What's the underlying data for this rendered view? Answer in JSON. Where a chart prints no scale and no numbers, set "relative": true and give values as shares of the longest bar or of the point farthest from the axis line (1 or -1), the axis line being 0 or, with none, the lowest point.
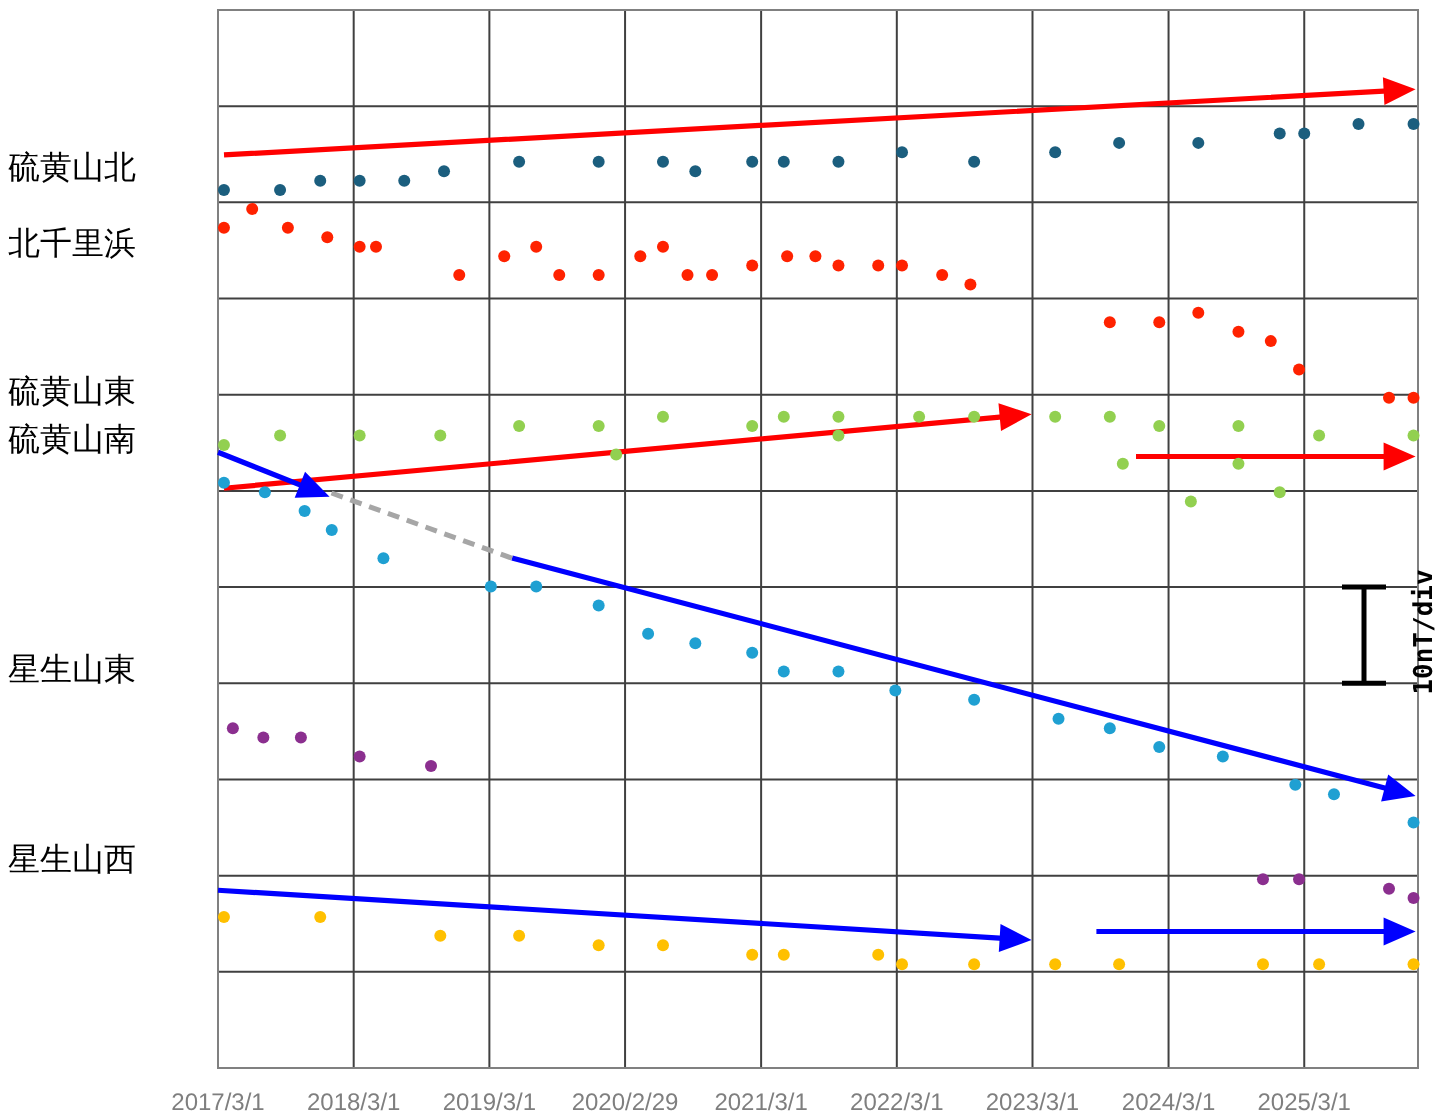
{
  "chart_data": {
    "type": "scatter",
    "relative": true,
    "grid": true,
    "legend": false,
    "marker": "circle",
    "tick_labels": "x",
    "xlim": [
      "2017-03-01",
      "2026-01-01"
    ],
    "xticks": [
      {
        "value": "2017-03-01",
        "label": "2017/3/1"
      },
      {
        "value": "2018-03-01",
        "label": "2018/3/1"
      },
      {
        "value": "2019-03-01",
        "label": "2019/3/1"
      },
      {
        "value": "2020-02-29",
        "label": "2020/2/29"
      },
      {
        "value": "2021-03-01",
        "label": "2021/3/1"
      },
      {
        "value": "2022-03-01",
        "label": "2022/3/1"
      },
      {
        "value": "2023-03-01",
        "label": "2023/3/1"
      },
      {
        "value": "2024-03-01",
        "label": "2024/3/1"
      },
      {
        "value": "2025-03-01",
        "label": "2025/3/1"
      }
    ],
    "annotations": [
      "硫黄山北",
      "北千里浜",
      "硫黄山東",
      "硫黄山南",
      "星生山東",
      "星生山西",
      "10nT/div"
    ],
    "series": [
      {
        "color": "#1b5e7e",
        "x": [
          "2017-03-17",
          "2017-08-15",
          "2017-12-01",
          "2018-03-17",
          "2018-07-15",
          "2018-10-30",
          "2019-05-20",
          "2019-12-20",
          "2020-06-10",
          "2020-09-05",
          "2021-02-05",
          "2021-05-01",
          "2021-09-25",
          "2022-03-15",
          "2022-09-25",
          "2023-05-01",
          "2023-10-20",
          "2024-05-20",
          "2024-12-25",
          "2025-03-01",
          "2025-07-25",
          "2025-12-20"
        ],
        "values": [
          0.93,
          0.93,
          0.94,
          0.94,
          0.94,
          0.95,
          0.96,
          0.96,
          0.96,
          0.95,
          0.96,
          0.96,
          0.96,
          0.97,
          0.96,
          0.97,
          0.98,
          0.98,
          0.99,
          0.99,
          1.0,
          1.0
        ]
      },
      {
        "color": "#ff2200",
        "x": [
          "2017-03-17",
          "2017-06-01",
          "2017-09-05",
          "2017-12-20",
          "2018-03-17",
          "2018-04-30",
          "2018-12-10",
          "2019-04-10",
          "2019-07-05",
          "2019-09-05",
          "2019-12-20",
          "2020-04-10",
          "2020-06-10",
          "2020-08-15",
          "2020-10-20",
          "2021-02-05",
          "2021-05-10",
          "2021-07-25",
          "2021-09-25",
          "2022-01-10",
          "2022-03-15",
          "2022-07-01",
          "2022-09-15",
          "2023-09-25",
          "2024-02-05",
          "2024-05-20",
          "2024-09-05",
          "2024-12-01",
          "2025-02-15",
          "2025-10-15",
          "2025-12-20"
        ],
        "values": [
          0.89,
          0.91,
          0.89,
          0.88,
          0.87,
          0.87,
          0.84,
          0.86,
          0.87,
          0.84,
          0.84,
          0.86,
          0.87,
          0.84,
          0.84,
          0.85,
          0.86,
          0.86,
          0.85,
          0.85,
          0.85,
          0.84,
          0.83,
          0.79,
          0.79,
          0.8,
          0.78,
          0.77,
          0.74,
          0.71,
          0.71
        ]
      },
      {
        "color": "#92d050",
        "x": [
          "2017-03-17",
          "2017-08-15",
          "2018-03-17",
          "2018-10-20",
          "2019-05-20",
          "2019-12-20",
          "2020-06-10",
          "2021-02-05",
          "2021-05-01",
          "2021-09-25",
          "2022-04-30",
          "2022-09-25",
          "2023-05-01",
          "2023-09-25",
          "2024-02-05",
          "2024-09-05",
          "2025-04-10",
          "2025-12-20",
          "2023-10-30",
          "2024-04-30",
          "2024-12-25",
          "2021-09-25",
          "2024-09-05",
          "2020-02-05"
        ],
        "values": [
          0.66,
          0.67,
          0.67,
          0.67,
          0.68,
          0.68,
          0.69,
          0.68,
          0.69,
          0.69,
          0.69,
          0.69,
          0.69,
          0.69,
          0.68,
          0.68,
          0.67,
          0.67,
          0.64,
          0.6,
          0.61,
          0.67,
          0.64,
          0.65
        ]
      },
      {
        "color": "#1fa0d2",
        "x": [
          "2017-03-17",
          "2017-07-05",
          "2017-10-20",
          "2018-01-01",
          "2018-05-20",
          "2019-03-05",
          "2019-07-05",
          "2019-12-20",
          "2020-05-01",
          "2020-09-05",
          "2021-02-05",
          "2021-05-01",
          "2021-09-25",
          "2022-02-25",
          "2022-09-25",
          "2023-05-10",
          "2023-09-25",
          "2024-02-05",
          "2024-07-25",
          "2025-02-05",
          "2025-05-20",
          "2025-12-20"
        ],
        "values": [
          0.62,
          0.61,
          0.59,
          0.57,
          0.54,
          0.51,
          0.51,
          0.49,
          0.46,
          0.45,
          0.44,
          0.42,
          0.42,
          0.4,
          0.39,
          0.37,
          0.36,
          0.34,
          0.33,
          0.3,
          0.29,
          0.26
        ]
      },
      {
        "color": "#8b2f8f",
        "x": [
          "2017-04-10",
          "2017-07-01",
          "2017-10-10",
          "2018-03-17",
          "2018-09-25",
          "2024-11-10",
          "2025-02-15",
          "2025-10-15",
          "2025-12-20"
        ],
        "values": [
          0.36,
          0.35,
          0.35,
          0.33,
          0.32,
          0.2,
          0.2,
          0.19,
          0.18
        ]
      },
      {
        "color": "#ffc000",
        "x": [
          "2017-03-17",
          "2017-12-01",
          "2018-10-20",
          "2019-05-20",
          "2019-12-20",
          "2020-06-10",
          "2021-02-05",
          "2021-05-01",
          "2022-01-10",
          "2022-03-15",
          "2022-09-25",
          "2023-05-01",
          "2023-10-20",
          "2024-11-10",
          "2025-04-10",
          "2025-12-20"
        ],
        "values": [
          0.16,
          0.16,
          0.14,
          0.14,
          0.13,
          0.13,
          0.12,
          0.12,
          0.12,
          0.11,
          0.11,
          0.11,
          0.11,
          0.11,
          0.11,
          0.11
        ]
      },
      {
        "type": "line",
        "marker": "none",
        "color": "#a6a6a6",
        "line_style": "dashed",
        "x": [
          "2017-12-25",
          "2019-05-01"
        ],
        "values": [
          0.61,
          0.54
        ]
      }
    ]
  }
}
